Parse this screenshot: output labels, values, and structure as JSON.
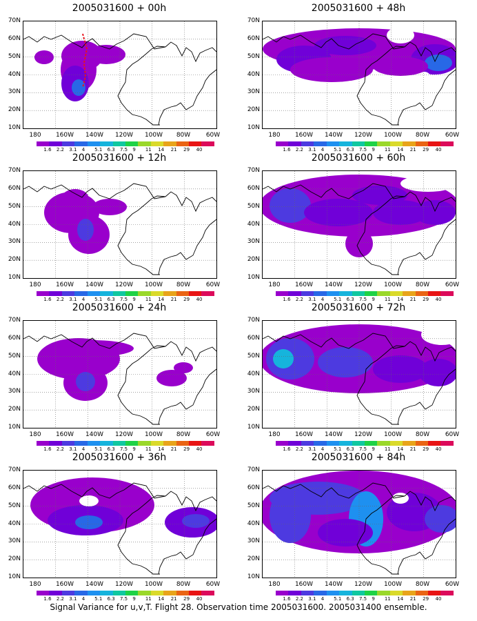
{
  "panels": [
    {
      "title": "2005031600 + 00h"
    },
    {
      "title": "2005031600 + 48h"
    },
    {
      "title": "2005031600 + 12h"
    },
    {
      "title": "2005031600 + 60h"
    },
    {
      "title": "2005031600 + 24h"
    },
    {
      "title": "2005031600 + 72h"
    },
    {
      "title": "2005031600 + 36h"
    },
    {
      "title": "2005031600 + 84h"
    }
  ],
  "lat_labels": [
    "70N",
    "60N",
    "50N",
    "40N",
    "30N",
    "20N",
    "10N"
  ],
  "lon_labels": [
    "180",
    "160W",
    "140W",
    "120W",
    "100W",
    "80W",
    "60W"
  ],
  "colorbar": {
    "levels": [
      "1.6",
      "2.2",
      "3.1",
      "4",
      "5.1",
      "6.3",
      "7.5",
      "9",
      "11",
      "14",
      "21",
      "29",
      "40"
    ],
    "colors": [
      "#9900cc",
      "#7000d8",
      "#4d3ae0",
      "#2868e6",
      "#1e90f0",
      "#16b4dc",
      "#10c8a0",
      "#1ed246",
      "#9ad82a",
      "#dada2a",
      "#e8a41a",
      "#ea6414",
      "#e81414",
      "#dc0a5a"
    ]
  },
  "footer": "Signal Variance for u,v,T. Flight 28. Observation time 2005031600. 2005031400 ensemble.",
  "track_color": "#e8141c"
}
